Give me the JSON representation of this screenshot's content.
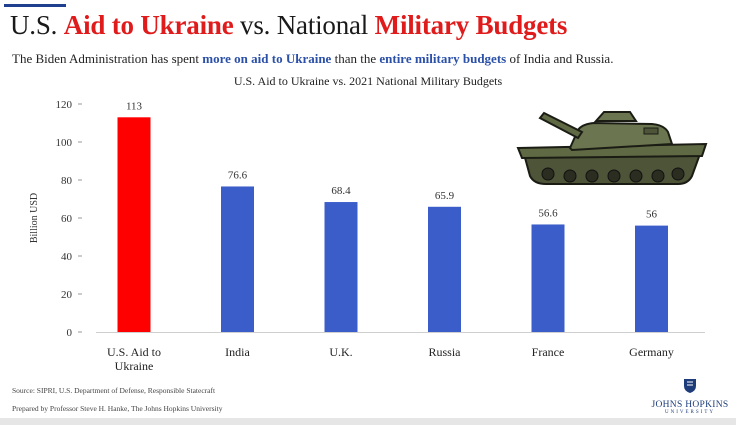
{
  "header": {
    "title_part1": "U.S. ",
    "title_part2": "Aid to Ukraine",
    "title_part3": " vs. National ",
    "title_part4": "Military Budgets",
    "subtitle_part1": "The Biden Administration has spent ",
    "subtitle_part2": "more on aid to Ukraine",
    "subtitle_part3": " than the ",
    "subtitle_part4": "entire military budgets",
    "subtitle_part5": " of India and Russia."
  },
  "footer": {
    "source": "Source: SIPRI, U.S. Department of Defense, Responsible Statecraft",
    "prepared": "Prepared by Professor Steve H. Hanke, The Johns Hopkins University"
  },
  "logo": {
    "name": "JOHNS HOPKINS",
    "sub": "UNIVERSITY",
    "icon": "shield-crest-icon"
  },
  "illustration": {
    "icon": "tank-icon"
  },
  "colors": {
    "highlight": "#ff0000",
    "bar": "#3b5dc9",
    "accent_red": "#e01b1b",
    "accent_blue": "#2b50a8"
  },
  "chart_data": {
    "type": "bar",
    "title": "U.S. Aid to Ukraine vs. 2021 National Military Budgets",
    "ylabel": "Billion USD",
    "xlabel": "",
    "categories": [
      "U.S. Aid to Ukraine",
      "India",
      "U.K.",
      "Russia",
      "France",
      "Germany"
    ],
    "values": [
      113,
      76.6,
      68.4,
      65.9,
      56.6,
      56
    ],
    "data_labels": [
      "113",
      "76.6",
      "68.4",
      "65.9",
      "56.6",
      "56"
    ],
    "ylim": [
      0,
      120
    ],
    "yticks": [
      0,
      20,
      40,
      60,
      80,
      100,
      120
    ],
    "grid": false,
    "legend": "none",
    "highlight_index": 0
  }
}
